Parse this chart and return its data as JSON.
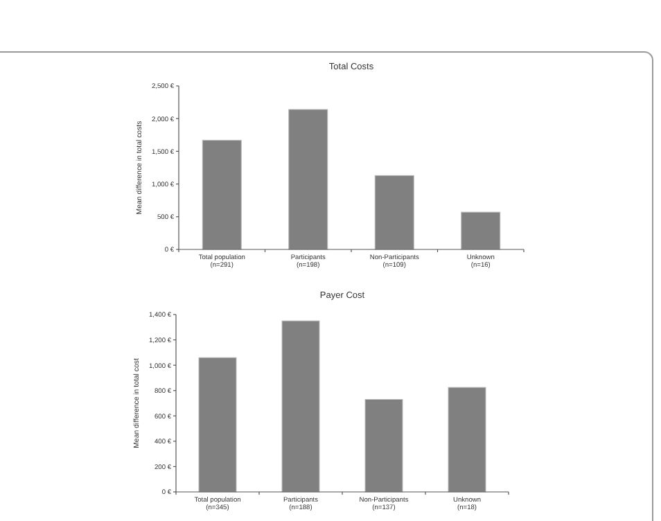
{
  "chart_data": [
    {
      "type": "bar",
      "title": "Total Costs",
      "ylabel": "Mean difference in total costs",
      "categories": [
        "Total population\n(n=291)",
        "Participants\n(n=198)",
        "Non-Participants\n(n=109)",
        "Unknown\n(n=16)"
      ],
      "values": [
        1670,
        2140,
        1130,
        570
      ],
      "color": "#808080",
      "ylim": [
        0,
        2500
      ],
      "yticks": [
        {
          "value": 0,
          "label": "0 €"
        },
        {
          "value": 500,
          "label": "500 €"
        },
        {
          "value": 1000,
          "label": "1,000 €"
        },
        {
          "value": 1500,
          "label": "1,500 €"
        },
        {
          "value": 2000,
          "label": "2,000 €"
        },
        {
          "value": 2500,
          "label": "2,500 €"
        }
      ],
      "grid": false
    },
    {
      "type": "bar",
      "title": "Payer Cost",
      "ylabel": "Mean difference in total cost",
      "categories": [
        "Total population\n(n=345)",
        "Participants\n(n=188)",
        "Non-Participants\n(n=137)",
        "Unknown\n(n=18)"
      ],
      "values": [
        1060,
        1350,
        730,
        825
      ],
      "color": "#808080",
      "ylim": [
        0,
        1400
      ],
      "yticks": [
        {
          "value": 0,
          "label": "0 €"
        },
        {
          "value": 200,
          "label": "200 €"
        },
        {
          "value": 400,
          "label": "400 €"
        },
        {
          "value": 600,
          "label": "600 €"
        },
        {
          "value": 800,
          "label": "800 €"
        },
        {
          "value": 1000,
          "label": "1,000 €"
        },
        {
          "value": 1200,
          "label": "1,200 €"
        },
        {
          "value": 1400,
          "label": "1,400 €"
        }
      ],
      "grid": false
    }
  ]
}
